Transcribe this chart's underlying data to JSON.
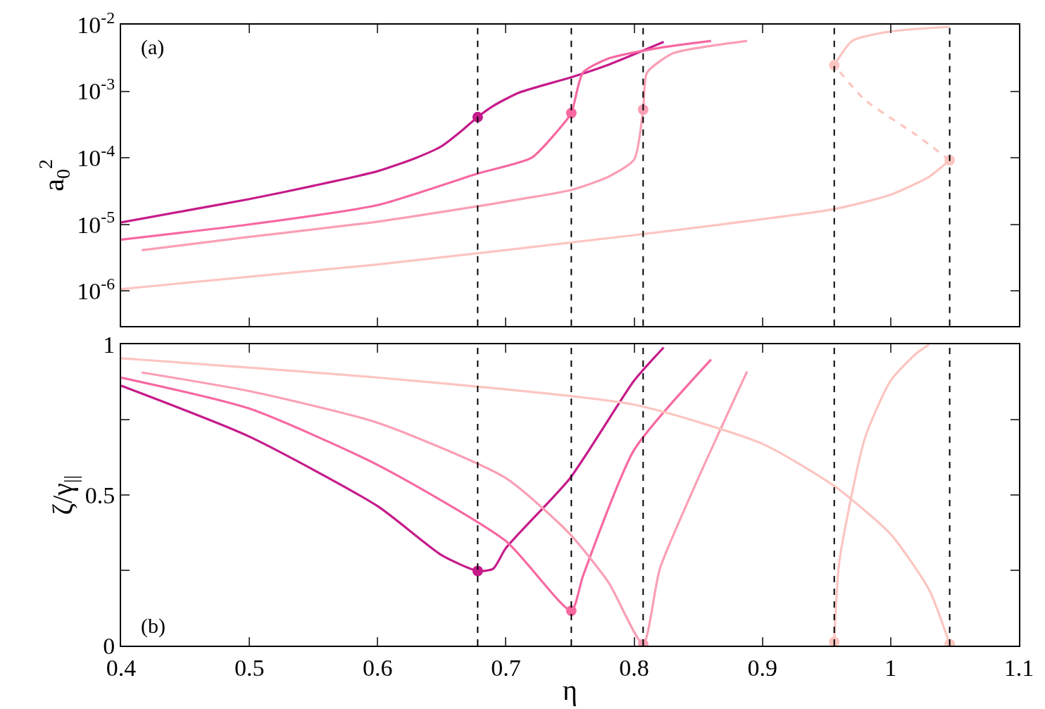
{
  "chart_data": [
    {
      "type": "line",
      "ylabel": "a$_{0}$$^{2}$",
      "log": "y",
      "xlim": [
        0.4,
        1.1
      ],
      "xticks": [
        0.4,
        0.5,
        0.6,
        0.7,
        0.8,
        0.9,
        1,
        1.1
      ],
      "ylim": [
        3e-07,
        0.01
      ],
      "yticks": [
        {
          "value": 1e-06,
          "label": "10$^{-6}$"
        },
        {
          "value": 1e-05,
          "label": "10$^{-5}$"
        },
        {
          "value": 0.0001,
          "label": "10$^{-4}$"
        },
        {
          "value": 0.001,
          "label": "10$^{-3}$"
        },
        {
          "value": 0.01,
          "label": "10$^{-2}$"
        }
      ],
      "tick_labels": "y",
      "annotations": [
        "(a)"
      ],
      "ref_lines": [
        {
          "axis": "x",
          "value": 0.678,
          "color": "#000000",
          "line_style": "dashed"
        },
        {
          "axis": "x",
          "value": 0.751,
          "color": "#000000",
          "line_style": "dashed"
        },
        {
          "axis": "x",
          "value": 0.807,
          "color": "#000000",
          "line_style": "dashed"
        },
        {
          "axis": "x",
          "value": 0.956,
          "color": "#000000",
          "line_style": "dashed"
        },
        {
          "axis": "x",
          "value": 1.046,
          "color": "#000000",
          "line_style": "dashed"
        }
      ],
      "series": [
        {
          "color": "#c51b8a",
          "line_style": "solid",
          "x": [
            0.4,
            0.45,
            0.5,
            0.55,
            0.6,
            0.63,
            0.65,
            0.665,
            0.678,
            0.69,
            0.71,
            0.75,
            0.78,
            0.823
          ],
          "values": [
            1.07e-05,
            1.6e-05,
            2.4e-05,
            3.8e-05,
            6.3e-05,
            0.0001,
            0.00015,
            0.00025,
            0.00041,
            0.0006,
            0.00095,
            0.0016,
            0.0025,
            0.0055
          ]
        },
        {
          "color": "#f768a1",
          "line_style": "solid",
          "x": [
            0.4,
            0.5,
            0.6,
            0.678,
            0.72,
            0.74,
            0.751,
            0.76,
            0.78,
            0.82,
            0.86
          ],
          "values": [
            5.9e-06,
            1e-05,
            1.95e-05,
            5.8e-05,
            0.0001,
            0.00025,
            0.00047,
            0.0019,
            0.0031,
            0.0045,
            0.0057
          ]
        },
        {
          "color": "#fa9fb5",
          "line_style": "solid",
          "x": [
            0.416,
            0.5,
            0.6,
            0.7,
            0.751,
            0.78,
            0.8,
            0.807,
            0.81,
            0.83,
            0.86,
            0.888
          ],
          "values": [
            4.1e-06,
            6.5e-06,
            1.1e-05,
            2.2e-05,
            3.3e-05,
            5.2e-05,
            9.4e-05,
            0.00053,
            0.0019,
            0.0037,
            0.0048,
            0.0057
          ]
        },
        {
          "color": "#fcc5c0",
          "line_style": "solid",
          "x": [
            0.4,
            0.6,
            0.8,
            0.956,
            1.0,
            1.03,
            1.046
          ],
          "values": [
            1.07e-06,
            2.5e-06,
            6.9e-06,
            1.7e-05,
            2.8e-05,
            5.2e-05,
            9.2e-05
          ]
        },
        {
          "color": "#fcc5c0",
          "line_style": "dashed",
          "x": [
            1.046,
            1.02,
            0.98,
            0.956
          ],
          "values": [
            9.2e-05,
            0.00022,
            0.00074,
            0.00246
          ]
        },
        {
          "color": "#fcc5c0",
          "line_style": "solid",
          "x": [
            0.956,
            0.97,
            1.0,
            1.046
          ],
          "values": [
            0.00246,
            0.0057,
            0.0079,
            0.0093
          ]
        },
        {
          "type": "scatter",
          "marker": "circle",
          "colors": [
            "#c51b8a",
            "#f768a1",
            "#fa9fb5",
            "#fcc5c0",
            "#fcc5c0"
          ],
          "x": [
            0.678,
            0.751,
            0.807,
            0.956,
            1.046
          ],
          "values": [
            0.00041,
            0.00047,
            0.00053,
            0.00246,
            9.2e-05
          ]
        }
      ]
    },
    {
      "type": "line",
      "xlabel": "η",
      "ylabel": "ζ/γ$_{||}$",
      "xlim": [
        0.4,
        1.1
      ],
      "xticks": [
        0.4,
        0.5,
        0.6,
        0.7,
        0.8,
        0.9,
        1,
        1.1
      ],
      "ylim": [
        0,
        1
      ],
      "yticks": [
        0,
        {
          "value": 0.25,
          "label": null
        },
        0.5,
        {
          "value": 0.75,
          "label": null
        },
        1
      ],
      "annotations": [
        "(b)"
      ],
      "ref_lines": [
        {
          "axis": "x",
          "value": 0.678,
          "color": "#000000",
          "line_style": "dashed"
        },
        {
          "axis": "x",
          "value": 0.751,
          "color": "#000000",
          "line_style": "dashed"
        },
        {
          "axis": "x",
          "value": 0.807,
          "color": "#000000",
          "line_style": "dashed"
        },
        {
          "axis": "x",
          "value": 0.956,
          "color": "#000000",
          "line_style": "dashed"
        },
        {
          "axis": "x",
          "value": 1.046,
          "color": "#000000",
          "line_style": "dashed"
        }
      ],
      "series": [
        {
          "color": "#c51b8a",
          "line_style": "solid",
          "x": [
            0.4,
            0.5,
            0.6,
            0.65,
            0.678,
            0.69,
            0.7,
            0.75,
            0.8,
            0.823
          ],
          "values": [
            0.863,
            0.694,
            0.463,
            0.3,
            0.248,
            0.255,
            0.324,
            0.556,
            0.88,
            0.99
          ]
        },
        {
          "color": "#f768a1",
          "line_style": "solid",
          "x": [
            0.4,
            0.5,
            0.6,
            0.7,
            0.751,
            0.76,
            0.8,
            0.86
          ],
          "values": [
            0.89,
            0.787,
            0.6,
            0.347,
            0.116,
            0.23,
            0.65,
            0.95
          ]
        },
        {
          "color": "#fa9fb5",
          "line_style": "solid",
          "x": [
            0.416,
            0.5,
            0.6,
            0.7,
            0.75,
            0.78,
            0.807,
            0.82,
            0.85,
            0.888
          ],
          "values": [
            0.907,
            0.845,
            0.74,
            0.556,
            0.37,
            0.21,
            0.005,
            0.255,
            0.556,
            0.91
          ]
        },
        {
          "color": "#fcc5c0",
          "line_style": "solid",
          "x": [
            0.4,
            0.6,
            0.8,
            0.9,
            0.956,
            1.0,
            1.03,
            1.046
          ],
          "values": [
            0.954,
            0.89,
            0.8,
            0.67,
            0.53,
            0.37,
            0.185,
            0.005
          ]
        },
        {
          "color": "#fcc5c0",
          "line_style": "solid",
          "x": [
            0.956,
            0.96,
            0.98,
            1.0,
            1.02,
            1.03
          ],
          "values": [
            0.012,
            0.28,
            0.69,
            0.88,
            0.97,
            1.0
          ]
        },
        {
          "type": "scatter",
          "marker": "circle",
          "colors": [
            "#c51b8a",
            "#f768a1",
            "#fa9fb5",
            "#fcc5c0",
            "#fcc5c0"
          ],
          "x": [
            0.678,
            0.751,
            0.807,
            0.956,
            1.046
          ],
          "values": [
            0.248,
            0.116,
            0.005,
            0.012,
            0.005
          ]
        }
      ]
    }
  ]
}
